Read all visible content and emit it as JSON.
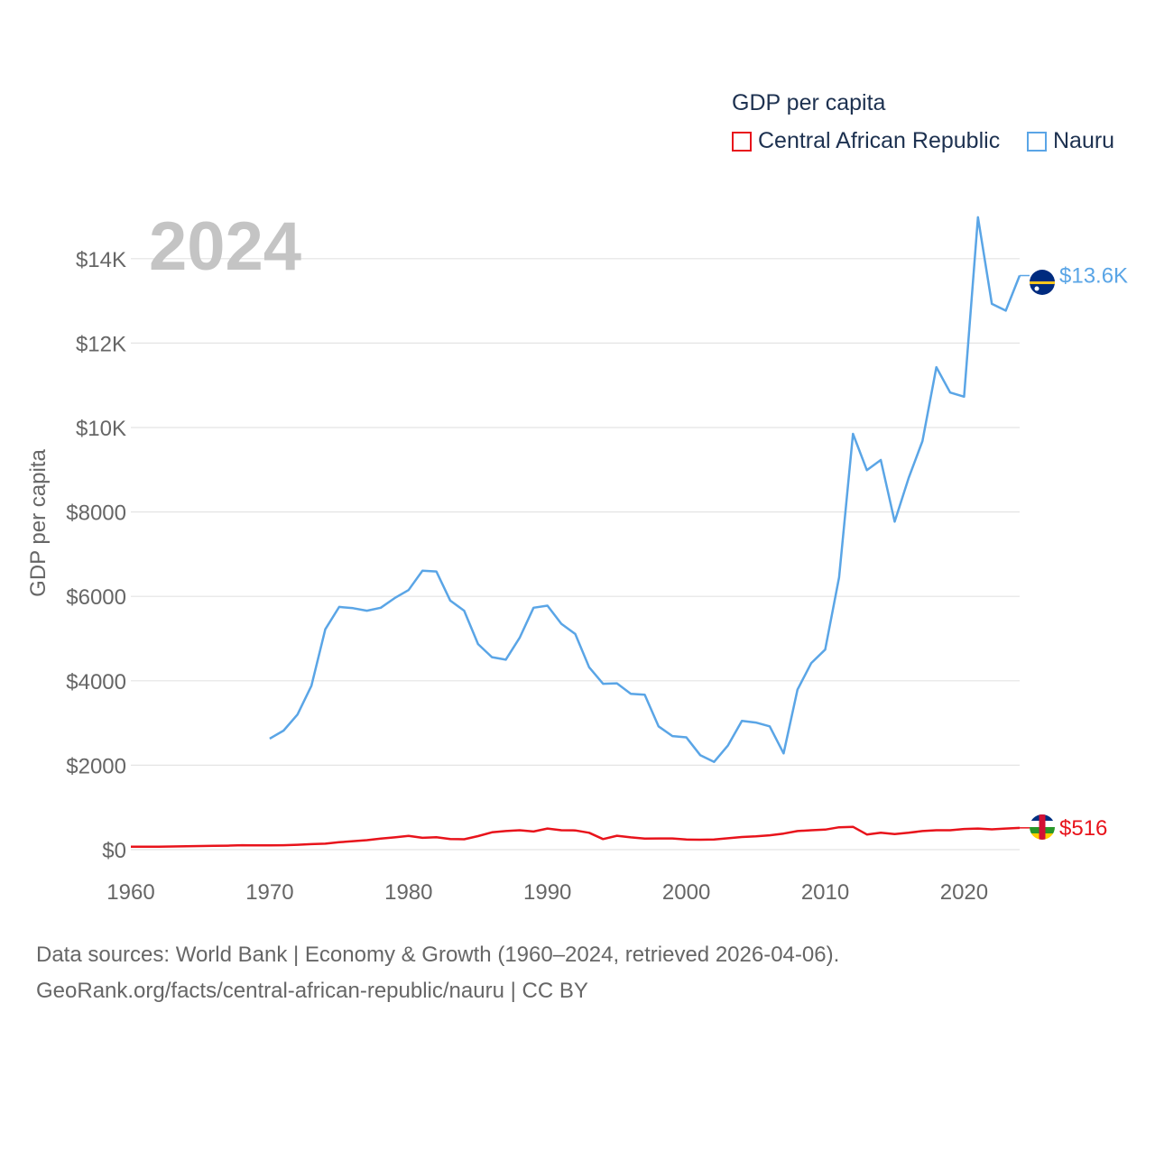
{
  "legend": {
    "title": "GDP per capita",
    "items": [
      {
        "label": "Central African Republic",
        "color": "#e8131b"
      },
      {
        "label": "Nauru",
        "color": "#5aa5e6"
      }
    ]
  },
  "footer": {
    "line1": "Data sources: World Bank | Economy & Growth (1960–2024, retrieved 2026-04-06).",
    "line2": "GeoRank.org/facts/central-african-republic/nauru | CC BY"
  },
  "chart_data": {
    "type": "line",
    "title": "2024",
    "xlabel": "",
    "ylabel": "GDP per capita",
    "xlim": [
      1960,
      2024
    ],
    "ylim": [
      0,
      15000
    ],
    "x_ticks": [
      1960,
      1970,
      1980,
      1990,
      2000,
      2010,
      2020
    ],
    "x_tick_labels": [
      "1960",
      "1970",
      "1980",
      "1990",
      "2000",
      "2010",
      "2020"
    ],
    "y_ticks": [
      0,
      2000,
      4000,
      6000,
      8000,
      10000,
      12000,
      14000
    ],
    "y_tick_labels": [
      "$0",
      "$2000",
      "$4000",
      "$6000",
      "$8000",
      "$10K",
      "$12K",
      "$14K"
    ],
    "grid": true,
    "legend_position": "top-right",
    "series": [
      {
        "name": "Central African Republic",
        "color": "#e8131b",
        "end_label": "$516",
        "x": [
          1960,
          1961,
          1962,
          1963,
          1964,
          1965,
          1966,
          1967,
          1968,
          1969,
          1970,
          1971,
          1972,
          1973,
          1974,
          1975,
          1976,
          1977,
          1978,
          1979,
          1980,
          1981,
          1982,
          1983,
          1984,
          1985,
          1986,
          1987,
          1988,
          1989,
          1990,
          1991,
          1992,
          1993,
          1994,
          1995,
          1996,
          1997,
          1998,
          1999,
          2000,
          2001,
          2002,
          2003,
          2004,
          2005,
          2006,
          2007,
          2008,
          2009,
          2010,
          2011,
          2012,
          2013,
          2014,
          2015,
          2016,
          2017,
          2018,
          2019,
          2020,
          2021,
          2022,
          2023,
          2024
        ],
        "values": [
          70,
          70,
          70,
          75,
          80,
          85,
          90,
          95,
          105,
          100,
          100,
          105,
          115,
          130,
          140,
          175,
          200,
          225,
          260,
          290,
          325,
          280,
          295,
          250,
          245,
          320,
          410,
          440,
          460,
          430,
          500,
          460,
          455,
          400,
          250,
          330,
          290,
          260,
          265,
          265,
          240,
          235,
          240,
          270,
          300,
          315,
          340,
          380,
          440,
          460,
          475,
          530,
          540,
          360,
          400,
          370,
          400,
          440,
          460,
          460,
          490,
          500,
          480,
          500,
          516
        ]
      },
      {
        "name": "Nauru",
        "color": "#5aa5e6",
        "end_label": "$13.6K",
        "x": [
          1970,
          1971,
          1972,
          1973,
          1974,
          1975,
          1976,
          1977,
          1978,
          1979,
          1980,
          1981,
          1982,
          1983,
          1984,
          1985,
          1986,
          1987,
          1988,
          1989,
          1990,
          1991,
          1992,
          1993,
          1994,
          1995,
          1996,
          1997,
          1998,
          1999,
          2000,
          2001,
          2002,
          2003,
          2004,
          2005,
          2006,
          2007,
          2008,
          2009,
          2010,
          2011,
          2012,
          2013,
          2014,
          2015,
          2016,
          2017,
          2018,
          2019,
          2020,
          2021,
          2022,
          2023,
          2024
        ],
        "values": [
          2630,
          2820,
          3200,
          3880,
          5220,
          5750,
          5720,
          5660,
          5730,
          5960,
          6150,
          6610,
          6590,
          5900,
          5660,
          4870,
          4560,
          4500,
          5020,
          5730,
          5780,
          5350,
          5110,
          4320,
          3930,
          3940,
          3690,
          3670,
          2920,
          2690,
          2660,
          2240,
          2080,
          2470,
          3050,
          3010,
          2920,
          2280,
          3790,
          4420,
          4740,
          6450,
          9850,
          8990,
          9230,
          7770,
          8800,
          9680,
          11430,
          10830,
          10730,
          14980,
          12930,
          12770,
          13600
        ]
      }
    ]
  }
}
